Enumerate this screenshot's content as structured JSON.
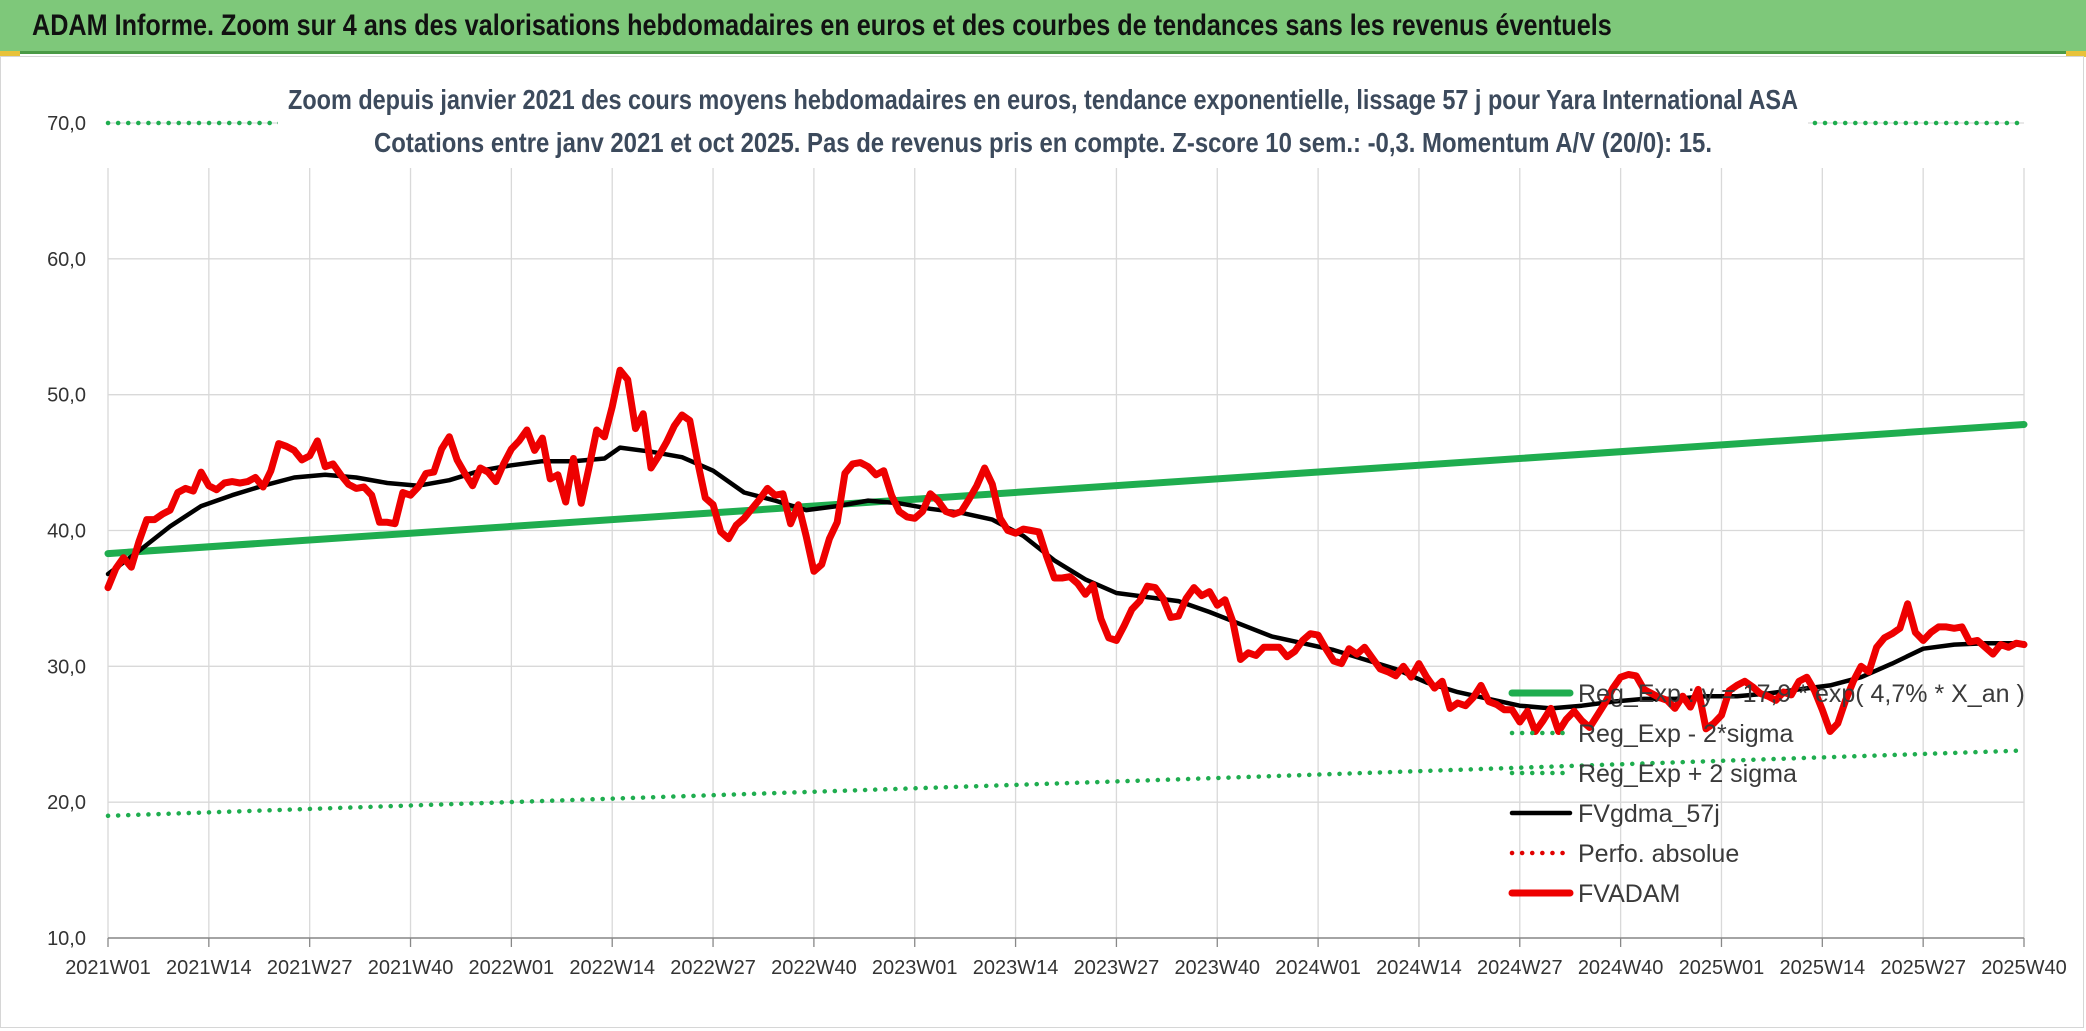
{
  "header": {
    "title": "ADAM Informe. Zoom sur 4 ans des valorisations hebdomadaires en euros et des courbes de tendances sans les revenus éventuels"
  },
  "chart_data": {
    "type": "line",
    "title": "Zoom depuis janvier 2021 des cours moyens hebdomadaires en euros, tendance exponentielle, lissage 57 j pour Yara International ASA",
    "subtitle": "Cotations entre janv 2021 et oct 2025. Pas de revenus pris en compte. Z-score 10 sem.: -0,3. Momentum A/V (20/0): 15.",
    "xlabel": "",
    "ylabel": "",
    "ylim": [
      10,
      70
    ],
    "xlim": [
      0,
      247
    ],
    "yticks": [
      {
        "value": 10,
        "label": "10,0"
      },
      {
        "value": 20,
        "label": "20,0"
      },
      {
        "value": 30,
        "label": "30,0"
      },
      {
        "value": 40,
        "label": "40,0"
      },
      {
        "value": 50,
        "label": "50,0"
      },
      {
        "value": 60,
        "label": "60,0"
      },
      {
        "value": 70,
        "label": "70,0"
      }
    ],
    "xticks": [
      {
        "index": 0,
        "label": "2021W01"
      },
      {
        "index": 13,
        "label": "2021W14"
      },
      {
        "index": 26,
        "label": "2021W27"
      },
      {
        "index": 39,
        "label": "2021W40"
      },
      {
        "index": 52,
        "label": "2022W01"
      },
      {
        "index": 65,
        "label": "2022W14"
      },
      {
        "index": 78,
        "label": "2022W27"
      },
      {
        "index": 91,
        "label": "2022W40"
      },
      {
        "index": 104,
        "label": "2023W01"
      },
      {
        "index": 117,
        "label": "2023W14"
      },
      {
        "index": 130,
        "label": "2023W27"
      },
      {
        "index": 143,
        "label": "2023W40"
      },
      {
        "index": 156,
        "label": "2024W01"
      },
      {
        "index": 169,
        "label": "2024W14"
      },
      {
        "index": 182,
        "label": "2024W27"
      },
      {
        "index": 195,
        "label": "2024W40"
      },
      {
        "index": 208,
        "label": "2025W01"
      },
      {
        "index": 221,
        "label": "2025W14"
      },
      {
        "index": 234,
        "label": "2025W27"
      },
      {
        "index": 247,
        "label": "2025W40"
      }
    ],
    "legend_position": "right",
    "series": [
      {
        "name": "Reg_Exp : y = 17,9 * exp( 4,7% *  X_an )",
        "color": "#1fad4f",
        "style": "solid-thick",
        "x": [
          0,
          247
        ],
        "values": [
          38.3,
          47.8
        ]
      },
      {
        "name": "Reg_Exp - 2*sigma",
        "color": "#1fad4f",
        "style": "dotted",
        "x": [
          0,
          247
        ],
        "values": [
          19.0,
          23.8
        ]
      },
      {
        "name": "Reg_Exp + 2 sigma",
        "color": "#1fad4f",
        "style": "dotted",
        "x": [
          0,
          247
        ],
        "values": [
          70.0,
          70.0
        ]
      },
      {
        "name": "FVgdma_57j",
        "color": "#000000",
        "style": "solid",
        "x": [
          0,
          4,
          8,
          12,
          16,
          20,
          24,
          28,
          32,
          36,
          40,
          44,
          48,
          52,
          56,
          60,
          64,
          66,
          70,
          74,
          78,
          82,
          86,
          90,
          94,
          98,
          102,
          106,
          110,
          114,
          118,
          122,
          126,
          130,
          134,
          138,
          142,
          146,
          150,
          154,
          158,
          162,
          166,
          170,
          174,
          178,
          182,
          186,
          190,
          194,
          198,
          202,
          206,
          210,
          214,
          218,
          222,
          226,
          230,
          234,
          238,
          242,
          247
        ],
        "values": [
          36.8,
          38.5,
          40.3,
          41.8,
          42.6,
          43.3,
          43.9,
          44.1,
          43.9,
          43.5,
          43.3,
          43.7,
          44.4,
          44.8,
          45.1,
          45.1,
          45.3,
          46.1,
          45.8,
          45.4,
          44.4,
          42.8,
          42.2,
          41.5,
          41.8,
          42.2,
          42.0,
          41.6,
          41.3,
          40.8,
          39.6,
          37.8,
          36.4,
          35.4,
          35.1,
          34.8,
          34.0,
          33.1,
          32.2,
          31.7,
          31.2,
          30.5,
          29.8,
          28.8,
          28.1,
          27.6,
          27.1,
          26.9,
          27.1,
          27.4,
          27.6,
          27.6,
          27.8,
          27.8,
          28.0,
          28.3,
          28.6,
          29.2,
          30.2,
          31.3,
          31.6,
          31.7,
          31.7
        ]
      },
      {
        "name": "Perfo. absolue",
        "color": "#e00000",
        "style": "dotted",
        "x": [],
        "values": []
      },
      {
        "name": "FVADAM",
        "color": "#ee0000",
        "style": "solid-thick",
        "x": [
          0,
          1,
          2,
          3,
          4,
          5,
          6,
          7,
          8,
          9,
          10,
          11,
          12,
          13,
          14,
          15,
          16,
          17,
          18,
          19,
          20,
          21,
          22,
          23,
          24,
          25,
          26,
          27,
          28,
          29,
          30,
          31,
          32,
          33,
          34,
          35,
          36,
          37,
          38,
          39,
          40,
          41,
          42,
          43,
          44,
          45,
          46,
          47,
          48,
          49,
          50,
          51,
          52,
          53,
          54,
          55,
          56,
          57,
          58,
          59,
          60,
          61,
          62,
          63,
          64,
          65,
          66,
          67,
          68,
          69,
          70,
          71,
          72,
          73,
          74,
          75,
          76,
          77,
          78,
          79,
          80,
          81,
          82,
          83,
          84,
          85,
          86,
          87,
          88,
          89,
          90,
          91,
          92,
          93,
          94,
          95,
          96,
          97,
          98,
          99,
          100,
          101,
          102,
          103,
          104,
          105,
          106,
          107,
          108,
          109,
          110,
          111,
          112,
          113,
          114,
          115,
          116,
          117,
          118,
          119,
          120,
          121,
          122,
          123,
          124,
          125,
          126,
          127,
          128,
          129,
          130,
          131,
          132,
          133,
          134,
          135,
          136,
          137,
          138,
          139,
          140,
          141,
          142,
          143,
          144,
          145,
          146,
          147,
          148,
          149,
          150,
          151,
          152,
          153,
          154,
          155,
          156,
          157,
          158,
          159,
          160,
          161,
          162,
          163,
          164,
          165,
          166,
          167,
          168,
          169,
          170,
          171,
          172,
          173,
          174,
          175,
          176,
          177,
          178,
          179,
          180,
          181,
          182,
          183,
          184,
          185,
          186,
          187,
          188,
          189,
          190,
          191,
          192,
          193,
          194,
          195,
          196,
          197,
          198,
          199,
          200,
          201,
          202,
          203,
          204,
          205,
          206,
          207,
          208,
          209,
          210,
          211,
          212,
          213,
          214,
          215,
          216,
          217,
          218,
          219,
          220,
          221,
          222,
          223,
          224,
          225,
          226,
          227,
          228,
          229,
          230,
          231,
          232,
          233,
          234,
          235,
          236,
          237,
          238,
          239,
          240,
          241,
          242,
          243,
          244,
          245,
          246,
          247
        ],
        "values": [
          35.8,
          37.2,
          38.0,
          37.3,
          39.2,
          40.8,
          40.8,
          41.2,
          41.5,
          42.8,
          43.1,
          42.9,
          44.3,
          43.3,
          43.0,
          43.5,
          43.6,
          43.5,
          43.6,
          43.9,
          43.2,
          44.4,
          46.4,
          46.2,
          45.9,
          45.2,
          45.5,
          46.6,
          44.7,
          44.9,
          44.1,
          43.4,
          43.1,
          43.2,
          42.6,
          40.6,
          40.6,
          40.5,
          42.8,
          42.6,
          43.2,
          44.2,
          44.3,
          46.0,
          46.9,
          45.2,
          44.2,
          43.3,
          44.6,
          44.3,
          43.6,
          44.9,
          46.0,
          46.6,
          47.4,
          45.9,
          46.8,
          43.8,
          44.1,
          42.1,
          45.3,
          42.0,
          44.6,
          47.4,
          46.9,
          49.1,
          51.8,
          51.1,
          47.5,
          48.6,
          44.6,
          45.5,
          46.5,
          47.7,
          48.5,
          48.1,
          45.1,
          42.4,
          41.9,
          39.9,
          39.4,
          40.4,
          40.9,
          41.6,
          42.3,
          43.1,
          42.6,
          42.7,
          40.5,
          41.9,
          39.6,
          37.0,
          37.5,
          39.4,
          40.6,
          44.2,
          44.9,
          45.0,
          44.7,
          44.1,
          44.4,
          42.6,
          41.4,
          41.0,
          40.9,
          41.4,
          42.7,
          42.2,
          41.4,
          41.2,
          41.4,
          42.3,
          43.3,
          44.6,
          43.4,
          40.9,
          40.0,
          39.8,
          40.1,
          40.0,
          39.9,
          38.1,
          36.5,
          36.5,
          36.6,
          36.1,
          35.3,
          36.0,
          33.5,
          32.1,
          31.9,
          33.0,
          34.2,
          34.8,
          35.9,
          35.8,
          35.0,
          33.6,
          33.7,
          35.0,
          35.8,
          35.2,
          35.5,
          34.5,
          34.9,
          33.3,
          30.5,
          31.0,
          30.8,
          31.4,
          31.4,
          31.4,
          30.7,
          31.1,
          31.9,
          32.4,
          32.3,
          31.3,
          30.4,
          30.2,
          31.3,
          30.9,
          31.4,
          30.6,
          29.8,
          29.6,
          29.3,
          30.0,
          29.2,
          30.2,
          29.2,
          28.4,
          28.9,
          26.9,
          27.3,
          27.1,
          27.7,
          28.6,
          27.4,
          27.2,
          26.8,
          26.8,
          25.9,
          26.7,
          25.2,
          26.0,
          26.9,
          25.2,
          26.1,
          26.7,
          26.0,
          25.5,
          26.4,
          27.3,
          28.4,
          29.2,
          29.4,
          29.3,
          28.3,
          28.0,
          27.7,
          27.5,
          26.9,
          27.8,
          27.0,
          28.3,
          25.4,
          25.8,
          26.4,
          28.2,
          28.6,
          28.9,
          28.5,
          28.0,
          27.8,
          27.5,
          28.1,
          27.9,
          28.9,
          29.2,
          28.2,
          26.8,
          25.2,
          25.8,
          27.5,
          28.9,
          30.0,
          29.6,
          31.4,
          32.1,
          32.4,
          32.8,
          34.6,
          32.5,
          31.9,
          32.5,
          32.9,
          32.9,
          32.8,
          32.9,
          31.8,
          31.9,
          31.4,
          30.9,
          31.6,
          31.4,
          31.7,
          31.6
        ]
      }
    ]
  }
}
